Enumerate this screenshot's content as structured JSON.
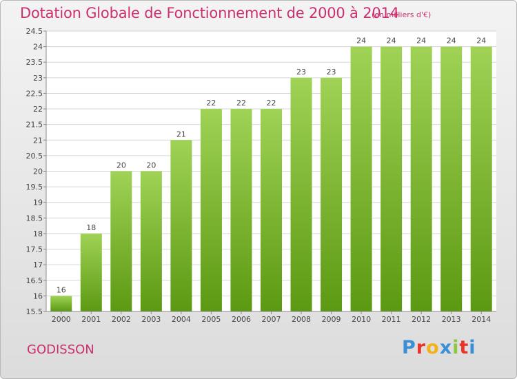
{
  "header": {
    "title": "Dotation Globale de Fonctionnement de 2000 à 2014",
    "unit": "(en milliers d'€)"
  },
  "footer": {
    "place": "GODISSON",
    "logo": [
      "P",
      "r",
      "o",
      "x",
      "i",
      "t",
      "i"
    ],
    "logo_colors": [
      "#3c8fd6",
      "#e9342b",
      "#f2b21c",
      "#3c8fd6",
      "#8dc63f",
      "#e9342b",
      "#3c8fd6"
    ]
  },
  "colors": {
    "bar_top": "#9fd255",
    "bar_bottom": "#5c9912",
    "title": "#cc2f6f"
  },
  "chart_data": {
    "type": "bar",
    "categories": [
      "2000",
      "2001",
      "2002",
      "2003",
      "2004",
      "2005",
      "2006",
      "2007",
      "2008",
      "2009",
      "2010",
      "2011",
      "2012",
      "2013",
      "2014"
    ],
    "values": [
      16,
      18,
      20,
      20,
      21,
      22,
      22,
      22,
      23,
      23,
      24,
      24,
      24,
      24,
      24
    ],
    "data_labels": [
      "16",
      "18",
      "20",
      "20",
      "21",
      "22",
      "22",
      "22",
      "23",
      "23",
      "24",
      "24",
      "24",
      "24",
      "24"
    ],
    "yticks": [
      15.5,
      16,
      16.5,
      17,
      17.5,
      18,
      18.5,
      19,
      19.5,
      20,
      20.5,
      21,
      21.5,
      22,
      22.5,
      23,
      23.5,
      24,
      24.5
    ],
    "ytick_labels": [
      "15.5",
      "16",
      "16.5",
      "17",
      "17.5",
      "18",
      "18.5",
      "19",
      "19.5",
      "20",
      "20.5",
      "21",
      "21.5",
      "22",
      "22.5",
      "23",
      "23.5",
      "24",
      "24.5"
    ],
    "ylim": [
      15.5,
      24.5
    ],
    "grid": true,
    "title": "Dotation Globale de Fonctionnement de 2000 à 2014",
    "xlabel": "",
    "ylabel": ""
  }
}
